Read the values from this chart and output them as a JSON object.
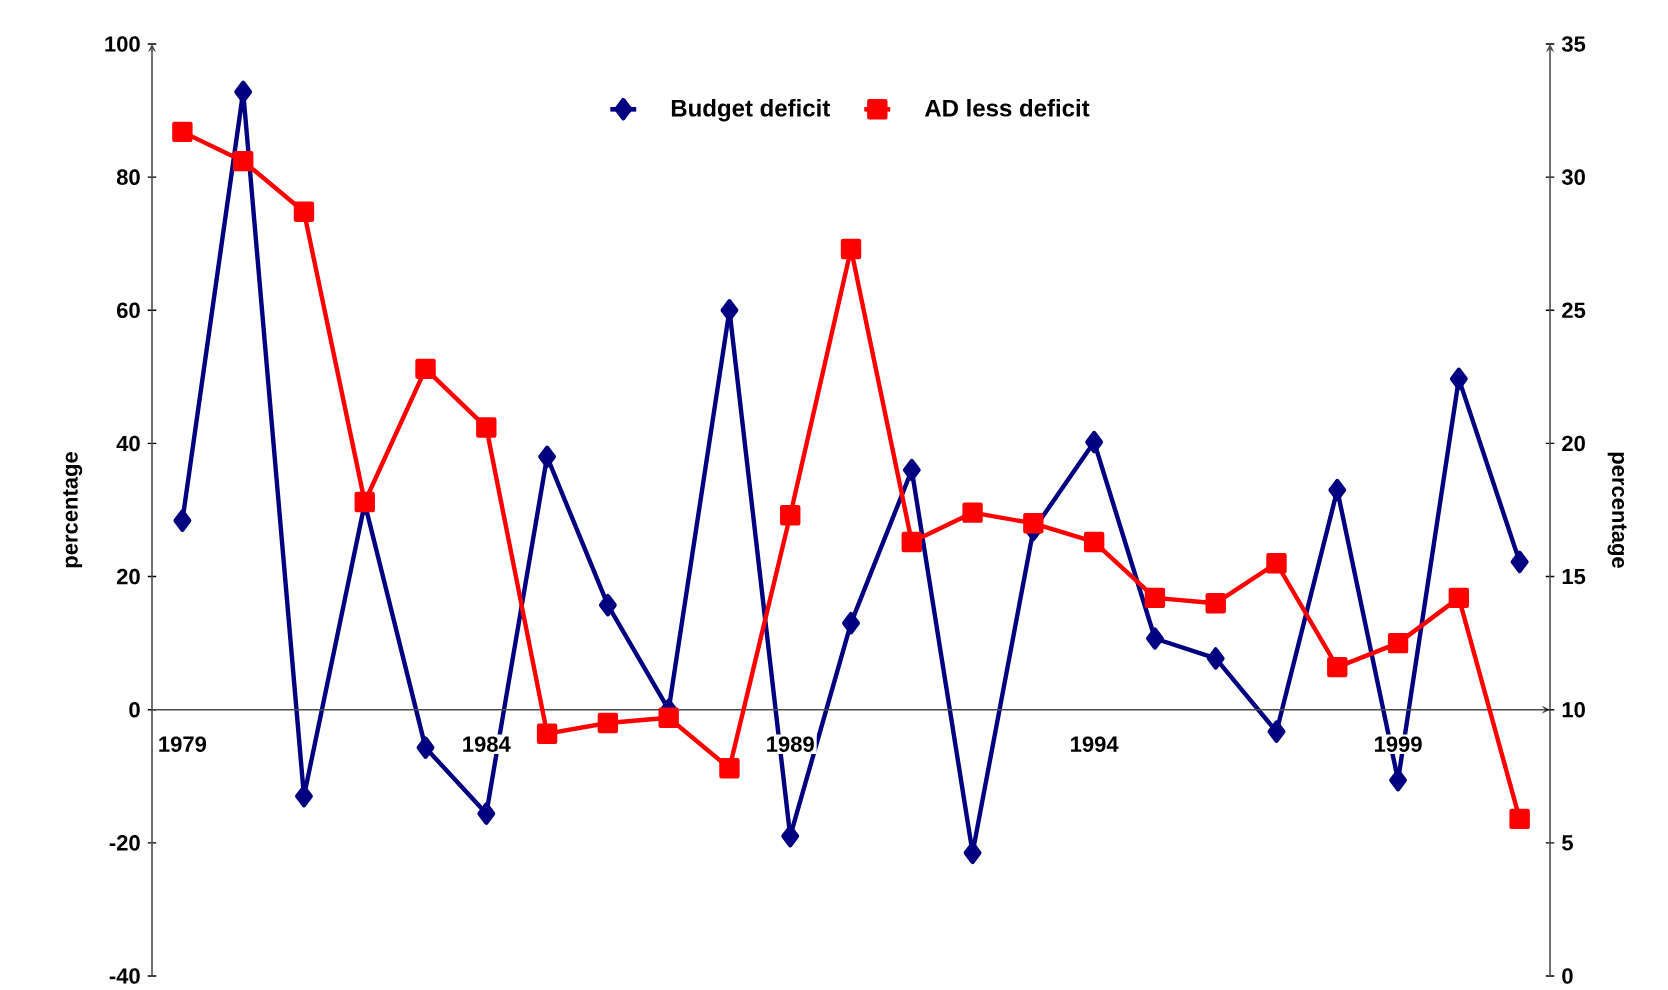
{
  "chart_data": {
    "type": "line",
    "categories": [
      "1979",
      null,
      null,
      null,
      null,
      "1984",
      null,
      null,
      null,
      null,
      "1989",
      null,
      null,
      null,
      null,
      "1994",
      null,
      null,
      null,
      null,
      "1999",
      null,
      null
    ],
    "series": [
      {
        "name": "Budget deficit",
        "color": "#000080",
        "marker": "diamond",
        "values": [
          28.4,
          92.8,
          -13,
          31,
          -5.7,
          -15.6,
          38,
          15.7,
          0,
          60,
          -19,
          13,
          36,
          -21.5,
          27,
          40.2,
          10.7,
          7.7,
          -3.3,
          33,
          -10.6,
          49.7,
          22.2
        ]
      },
      {
        "name": "AD less deficit",
        "color": "#ff0000",
        "marker": "square",
        "axis": "y2",
        "values": [
          31.7,
          30.6,
          28.7,
          17.8,
          22.8,
          20.6,
          9.1,
          9.5,
          9.7,
          7.8,
          17.3,
          27.3,
          16.3,
          17.4,
          17.0,
          16.3,
          14.2,
          14.0,
          15.5,
          11.6,
          12.5,
          14.2,
          5.9
        ]
      }
    ],
    "ylim": [
      -40,
      100
    ],
    "yticks": [
      -40,
      -20,
      0,
      20,
      40,
      60,
      80,
      100
    ],
    "y2lim": [
      0,
      35
    ],
    "y2ticks": [
      0,
      5,
      10,
      15,
      20,
      25,
      30,
      35
    ],
    "ylabel": "percentage",
    "y2label": "percentage",
    "legend": "top"
  }
}
